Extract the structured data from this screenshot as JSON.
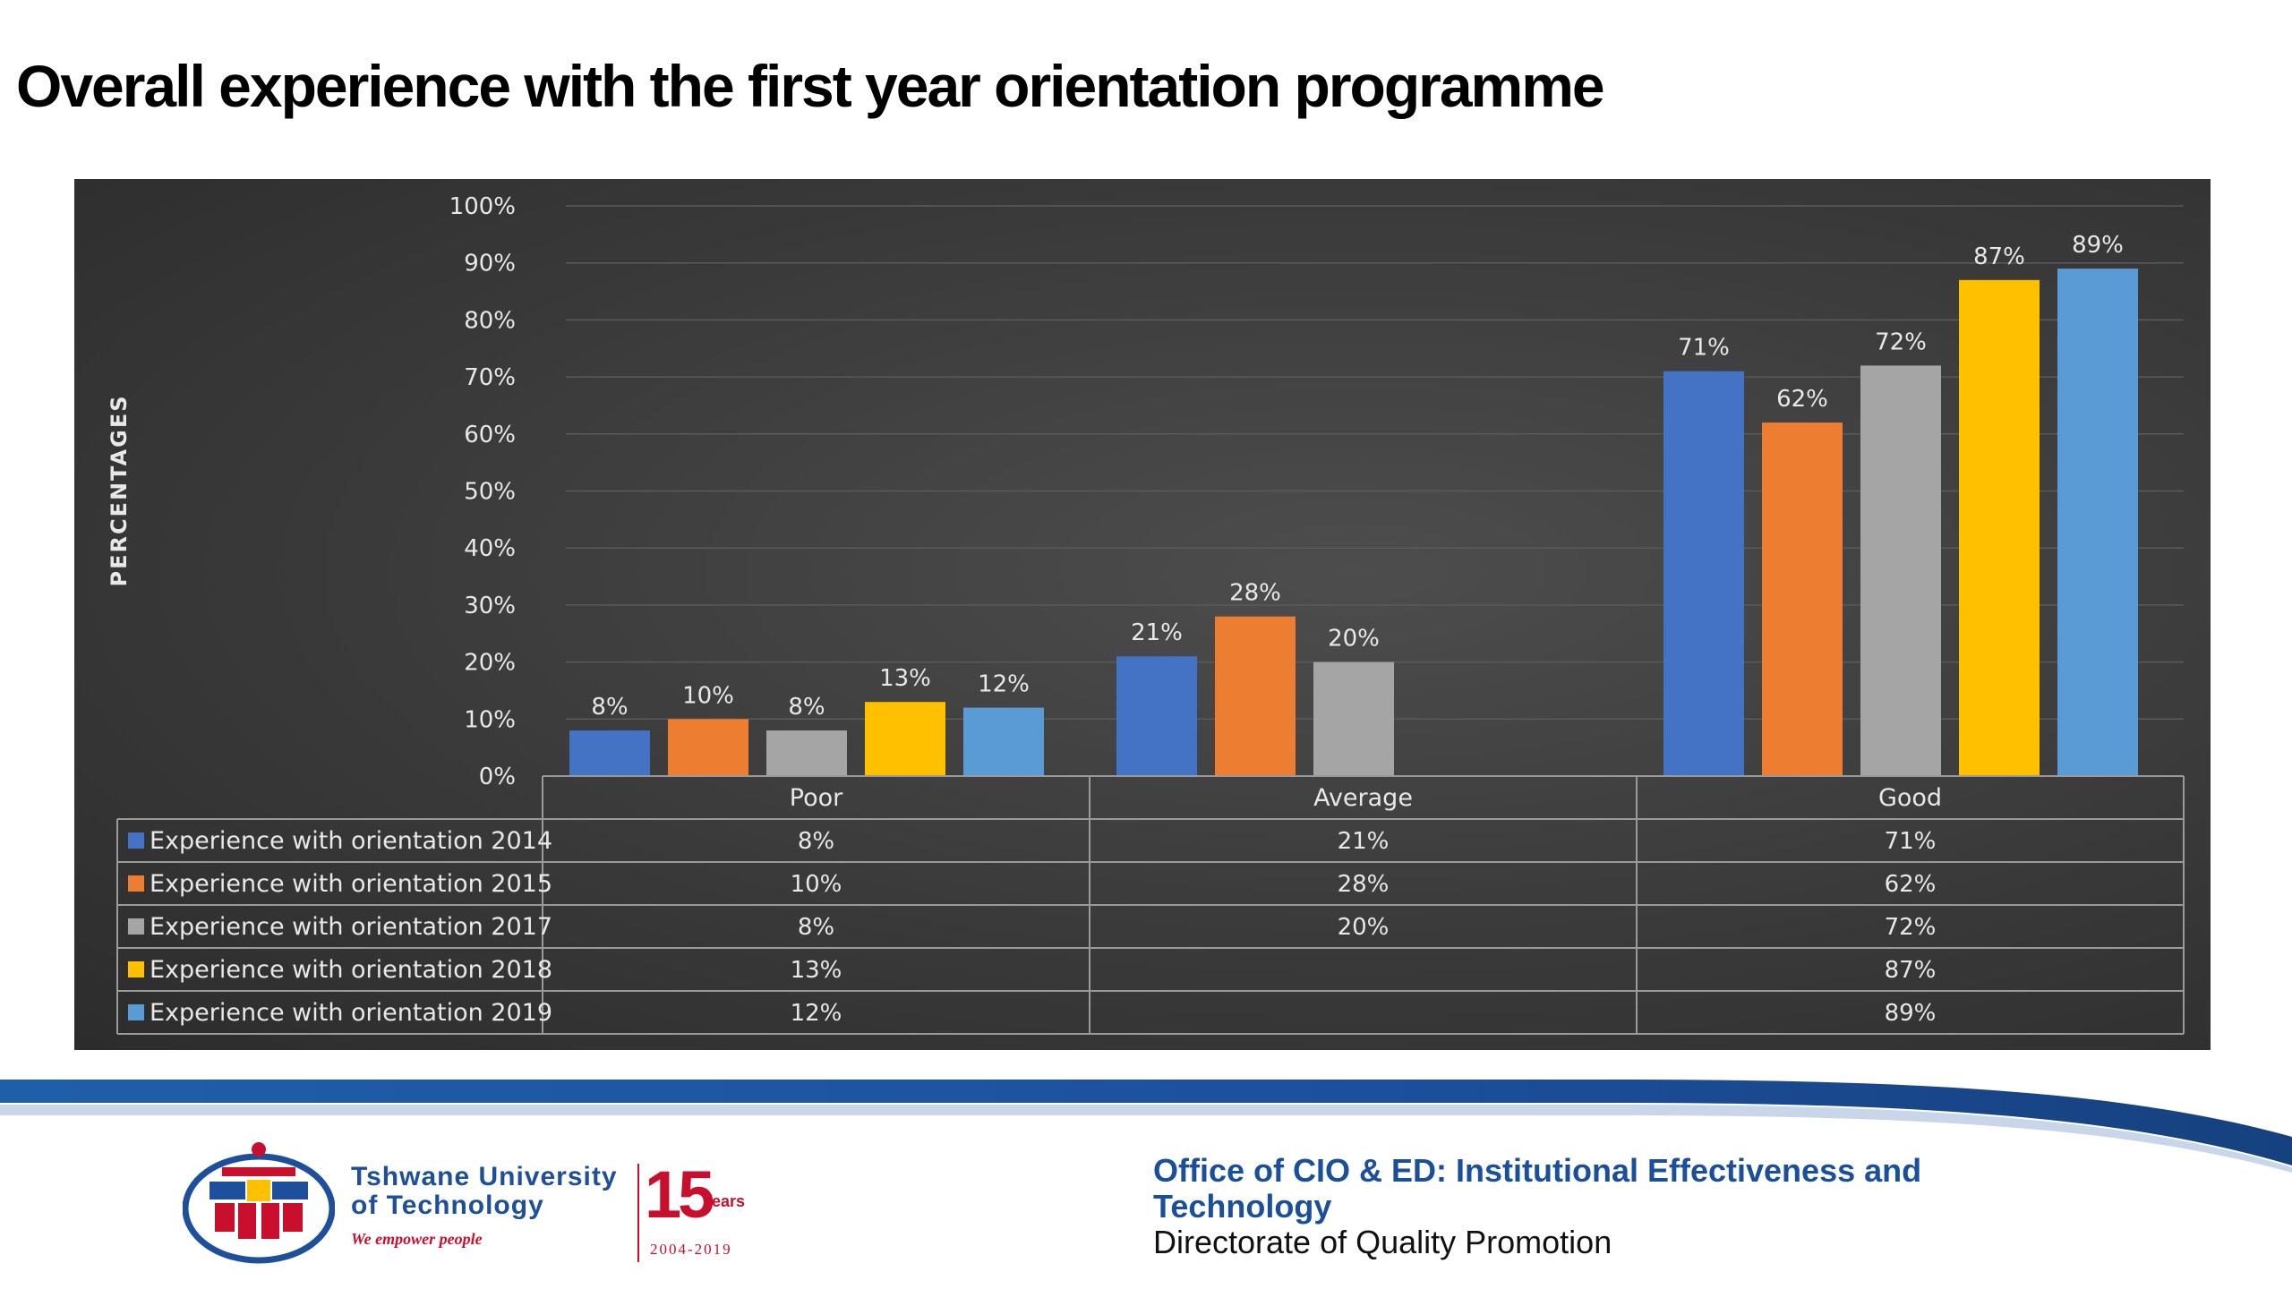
{
  "title": "Overall experience with the first year orientation programme",
  "chart_data": {
    "type": "bar",
    "ylabel": "PERCENTAGES",
    "ylim": [
      0,
      100
    ],
    "y_ticks": [
      "0%",
      "10%",
      "20%",
      "30%",
      "40%",
      "50%",
      "60%",
      "70%",
      "80%",
      "90%",
      "100%"
    ],
    "grid": true,
    "legend": "data-table",
    "categories": [
      "Poor",
      "Average",
      "Good"
    ],
    "series": [
      {
        "name": "Experience with orientation 2014",
        "color": "#4472c4",
        "values": [
          8,
          21,
          71
        ],
        "labels": [
          "8%",
          "21%",
          "71%"
        ]
      },
      {
        "name": "Experience with orientation 2015",
        "color": "#ed7d31",
        "values": [
          10,
          28,
          62
        ],
        "labels": [
          "10%",
          "28%",
          "62%"
        ]
      },
      {
        "name": "Experience with orientation 2017",
        "color": "#a5a5a5",
        "values": [
          8,
          20,
          72
        ],
        "labels": [
          "8%",
          "20%",
          "72%"
        ]
      },
      {
        "name": "Experience with orientation 2018",
        "color": "#ffc000",
        "values": [
          13,
          null,
          87
        ],
        "labels": [
          "13%",
          "",
          "87%"
        ]
      },
      {
        "name": "Experience with orientation 2019",
        "color": "#5b9bd5",
        "values": [
          12,
          null,
          89
        ],
        "labels": [
          "12%",
          "",
          "89%"
        ]
      }
    ]
  },
  "footer": {
    "logo_name_line1": "Tshwane University",
    "logo_name_line2": "of Technology",
    "logo_tagline": "We empower people",
    "logo_number": "15",
    "logo_years": "Years",
    "logo_range": "2004-2019",
    "office": "Office of CIO & ED: Institutional  Effectiveness and Technology",
    "directorate": "Directorate of Quality Promotion"
  }
}
